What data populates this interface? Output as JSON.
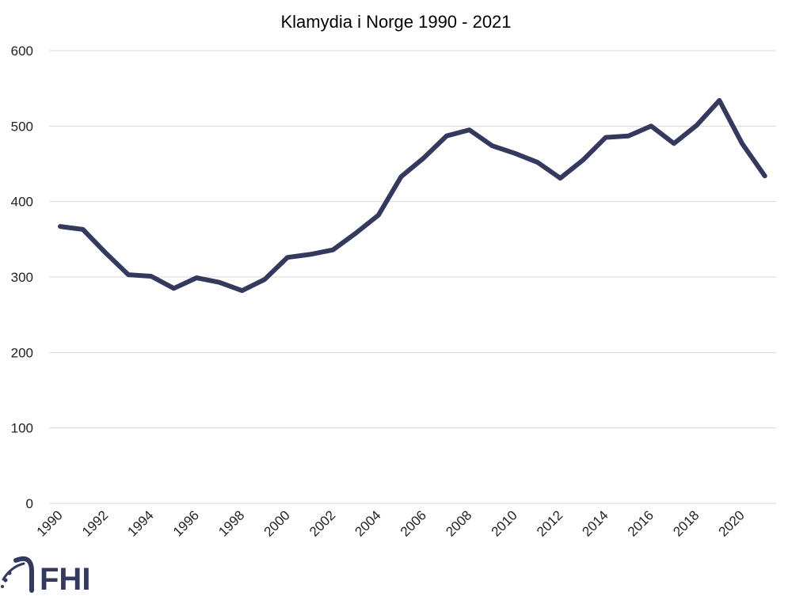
{
  "chart_data": {
    "type": "line",
    "title": "Klamydia i Norge 1990 - 2021",
    "xlabel": "",
    "ylabel": "",
    "ylim": [
      0,
      600
    ],
    "yticks": [
      0,
      100,
      200,
      300,
      400,
      500,
      600
    ],
    "x": [
      1990,
      1991,
      1992,
      1993,
      1994,
      1995,
      1996,
      1997,
      1998,
      1999,
      2000,
      2001,
      2002,
      2003,
      2004,
      2005,
      2006,
      2007,
      2008,
      2009,
      2010,
      2011,
      2012,
      2013,
      2014,
      2015,
      2016,
      2017,
      2018,
      2019,
      2020,
      2021
    ],
    "xtick_labels": [
      "1990",
      "1992",
      "1994",
      "1996",
      "1998",
      "2000",
      "2002",
      "2004",
      "2006",
      "2008",
      "2010",
      "2012",
      "2014",
      "2016",
      "2018",
      "2020"
    ],
    "series": [
      {
        "values": [
          367,
          363,
          332,
          303,
          301,
          285,
          299,
          293,
          282,
          297,
          326,
          330,
          336,
          358,
          382,
          433,
          458,
          487,
          495,
          474,
          464,
          452,
          431,
          455,
          485,
          487,
          500,
          477,
          501,
          534,
          477,
          434
        ]
      }
    ],
    "grid": true,
    "legend": "none",
    "line_color": "#34395e"
  },
  "logo": {
    "text": "FHI",
    "icon": "fhi-logo-icon",
    "color": "#34395e"
  }
}
